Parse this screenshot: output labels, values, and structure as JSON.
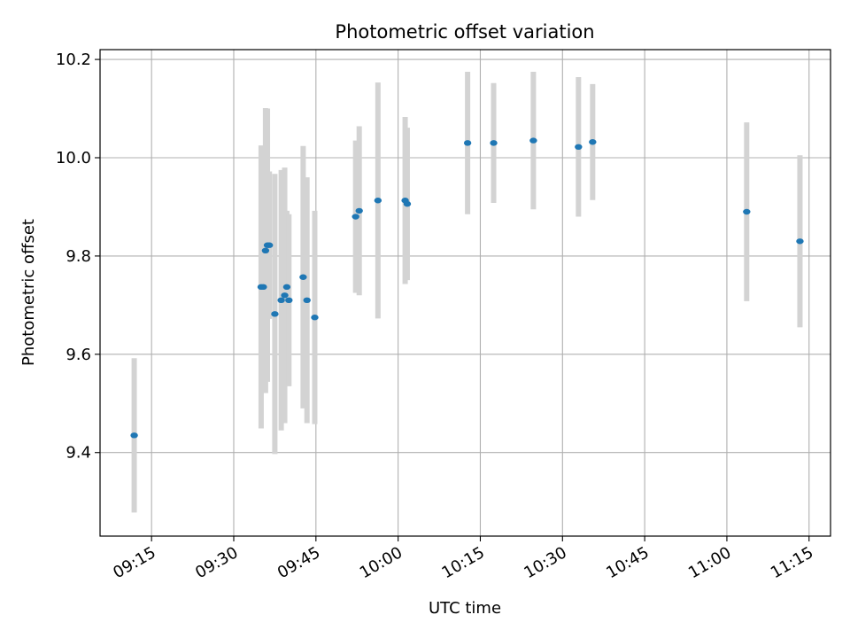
{
  "chart_data": {
    "type": "scatter",
    "title": "Photometric offset variation",
    "xlabel": "UTC time",
    "ylabel": "Photometric offset",
    "x_ticks": [
      "09:15",
      "09:30",
      "09:45",
      "10:00",
      "10:15",
      "10:30",
      "10:45",
      "11:00",
      "11:15"
    ],
    "y_ticks": [
      "9.4",
      "9.6",
      "9.8",
      "10.0",
      "10.2"
    ],
    "xlim": [
      "09:05:36",
      "11:18:55"
    ],
    "ylim": [
      9.23,
      10.22
    ],
    "grid": true,
    "colors": {
      "point": "#1f77b4",
      "errorbar": "#d3d3d3",
      "grid": "#b0b0b0"
    },
    "series": [
      {
        "points": [
          {
            "x": "09:11:50",
            "y": 9.435,
            "err": 0.157
          },
          {
            "x": "09:35:00",
            "y": 9.737,
            "err": 0.288
          },
          {
            "x": "09:35:24",
            "y": 9.737,
            "err": 0.2
          },
          {
            "x": "09:35:48",
            "y": 9.811,
            "err": 0.29
          },
          {
            "x": "09:36:09",
            "y": 9.822,
            "err": 0.278
          },
          {
            "x": "09:36:30",
            "y": 9.822,
            "err": 0.15
          },
          {
            "x": "09:37:30",
            "y": 9.682,
            "err": 0.285
          },
          {
            "x": "09:38:40",
            "y": 9.71,
            "err": 0.265
          },
          {
            "x": "09:39:18",
            "y": 9.72,
            "err": 0.26
          },
          {
            "x": "09:39:41",
            "y": 9.737,
            "err": 0.155
          },
          {
            "x": "09:40:04",
            "y": 9.71,
            "err": 0.175
          },
          {
            "x": "09:42:40",
            "y": 9.757,
            "err": 0.267
          },
          {
            "x": "09:43:22",
            "y": 9.71,
            "err": 0.25
          },
          {
            "x": "09:44:47",
            "y": 9.675,
            "err": 0.217
          },
          {
            "x": "09:52:15",
            "y": 9.88,
            "err": 0.155
          },
          {
            "x": "09:52:54",
            "y": 9.892,
            "err": 0.172
          },
          {
            "x": "09:56:19",
            "y": 9.913,
            "err": 0.24
          },
          {
            "x": "10:01:17",
            "y": 9.913,
            "err": 0.17
          },
          {
            "x": "10:01:40",
            "y": 9.906,
            "err": 0.155
          },
          {
            "x": "10:12:41",
            "y": 10.03,
            "err": 0.145
          },
          {
            "x": "10:17:26",
            "y": 10.03,
            "err": 0.122
          },
          {
            "x": "10:24:41",
            "y": 10.035,
            "err": 0.14
          },
          {
            "x": "10:32:55",
            "y": 10.022,
            "err": 0.142
          },
          {
            "x": "10:35:30",
            "y": 10.032,
            "err": 0.118
          },
          {
            "x": "11:03:37",
            "y": 9.89,
            "err": 0.182
          },
          {
            "x": "11:13:20",
            "y": 9.83,
            "err": 0.175
          }
        ]
      }
    ]
  }
}
